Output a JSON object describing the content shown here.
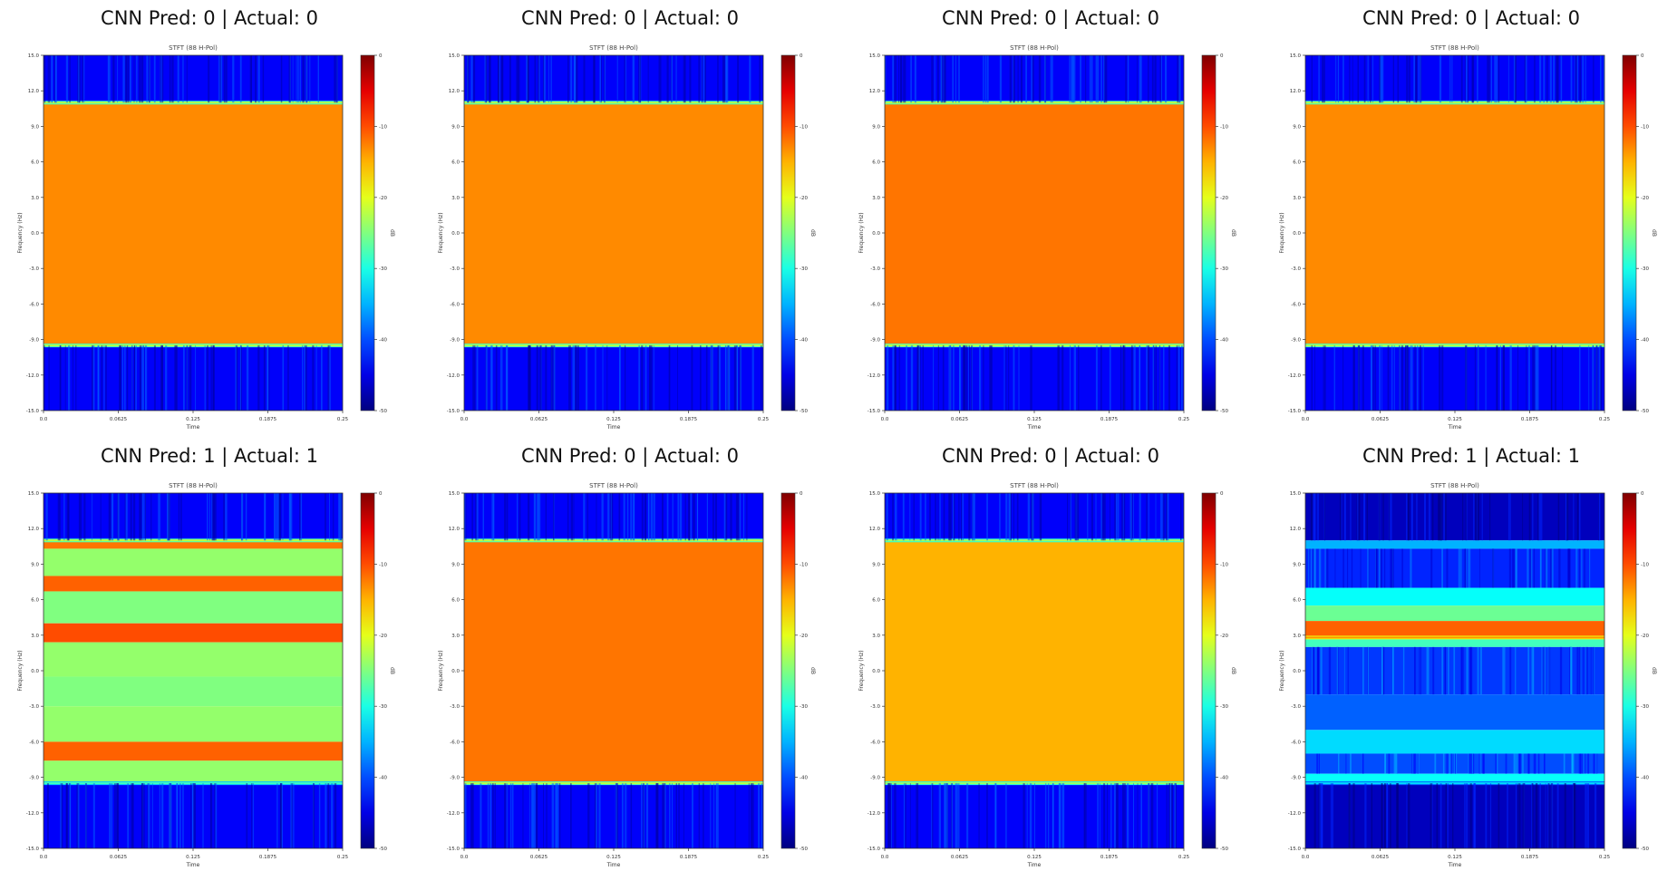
{
  "chart_data": [
    {
      "type": "heatmap",
      "title": "CNN Pred: 0 | Actual: 0",
      "subtitle": "STFT (88 H-Pol)",
      "xlabel": "Time",
      "ylabel": "Frequency (Hz)",
      "colorbar_label": "dB",
      "x_ticks": [
        "0.0",
        "0.0625",
        "0.125",
        "0.1875",
        "0.25"
      ],
      "y_ticks": [
        "15.0",
        "12.0",
        "9.0",
        "6.0",
        "3.0",
        "0.0",
        "-3.0",
        "-6.0",
        "-9.0",
        "-12.0",
        "-15.0"
      ],
      "colorbar_ticks": [
        "0",
        "-10",
        "-20",
        "-30",
        "-40",
        "-50"
      ],
      "colormap": "jet",
      "bands": [
        {
          "from": 11,
          "to": 15,
          "level": -44
        },
        {
          "from": -9.5,
          "to": 11,
          "level": -13
        },
        {
          "from": -15,
          "to": -9.5,
          "level": -44
        }
      ]
    },
    {
      "type": "heatmap",
      "title": "CNN Pred: 0 | Actual: 0",
      "subtitle": "STFT (88 H-Pol)",
      "xlabel": "Time",
      "ylabel": "Frequency (Hz)",
      "colorbar_label": "dB",
      "x_ticks": [
        "0.0",
        "0.0625",
        "0.125",
        "0.1875",
        "0.25"
      ],
      "y_ticks": [
        "15.0",
        "12.0",
        "9.0",
        "6.0",
        "3.0",
        "0.0",
        "-3.0",
        "-6.0",
        "-9.0",
        "-12.0",
        "-15.0"
      ],
      "colorbar_ticks": [
        "0",
        "-10",
        "-20",
        "-30",
        "-40",
        "-50"
      ],
      "colormap": "jet",
      "bands": [
        {
          "from": 11,
          "to": 15,
          "level": -44
        },
        {
          "from": -9.5,
          "to": 11,
          "level": -13
        },
        {
          "from": -15,
          "to": -9.5,
          "level": -44
        }
      ]
    },
    {
      "type": "heatmap",
      "title": "CNN Pred: 0 | Actual: 0",
      "subtitle": "STFT (88 H-Pol)",
      "xlabel": "Time",
      "ylabel": "Frequency (Hz)",
      "colorbar_label": "dB",
      "x_ticks": [
        "0.0",
        "0.0625",
        "0.125",
        "0.1875",
        "0.25"
      ],
      "y_ticks": [
        "15.0",
        "12.0",
        "9.0",
        "6.0",
        "3.0",
        "0.0",
        "-3.0",
        "-6.0",
        "-9.0",
        "-12.0",
        "-15.0"
      ],
      "colorbar_ticks": [
        "0",
        "-10",
        "-20",
        "-30",
        "-40",
        "-50"
      ],
      "colormap": "jet",
      "bands": [
        {
          "from": 11,
          "to": 15,
          "level": -44
        },
        {
          "from": -9.5,
          "to": 11,
          "level": -12
        },
        {
          "from": -15,
          "to": -9.5,
          "level": -44
        }
      ]
    },
    {
      "type": "heatmap",
      "title": "CNN Pred: 0 | Actual: 0",
      "subtitle": "STFT (88 H-Pol)",
      "xlabel": "Time",
      "ylabel": "Frequency (Hz)",
      "colorbar_label": "dB",
      "x_ticks": [
        "0.0",
        "0.0625",
        "0.125",
        "0.1875",
        "0.25"
      ],
      "y_ticks": [
        "15.0",
        "12.0",
        "9.0",
        "6.0",
        "3.0",
        "0.0",
        "-3.0",
        "-6.0",
        "-9.0",
        "-12.0",
        "-15.0"
      ],
      "colorbar_ticks": [
        "0",
        "-10",
        "-20",
        "-30",
        "-40",
        "-50"
      ],
      "colormap": "jet",
      "bands": [
        {
          "from": 11,
          "to": 15,
          "level": -44
        },
        {
          "from": -9.5,
          "to": 11,
          "level": -13
        },
        {
          "from": -15,
          "to": -9.5,
          "level": -44
        }
      ]
    },
    {
      "type": "heatmap",
      "title": "CNN Pred: 1 | Actual: 1",
      "subtitle": "STFT (88 H-Pol)",
      "xlabel": "Time",
      "ylabel": "Frequency (Hz)",
      "colorbar_label": "dB",
      "x_ticks": [
        "0.0",
        "0.0625",
        "0.125",
        "0.1875",
        "0.25"
      ],
      "y_ticks": [
        "15.0",
        "12.0",
        "9.0",
        "6.0",
        "3.0",
        "0.0",
        "-3.0",
        "-6.0",
        "-9.0",
        "-12.0",
        "-15.0"
      ],
      "colorbar_ticks": [
        "0",
        "-10",
        "-20",
        "-30",
        "-40",
        "-50"
      ],
      "colormap": "jet",
      "bands": [
        {
          "from": 11,
          "to": 15,
          "level": -44
        },
        {
          "from": 10.3,
          "to": 11,
          "level": -12
        },
        {
          "from": 8,
          "to": 10.3,
          "level": -24
        },
        {
          "from": 6.7,
          "to": 8,
          "level": -11
        },
        {
          "from": 4,
          "to": 6.7,
          "level": -25
        },
        {
          "from": 2.4,
          "to": 4,
          "level": -10
        },
        {
          "from": -0.5,
          "to": 2.4,
          "level": -24
        },
        {
          "from": -3,
          "to": -0.5,
          "level": -25
        },
        {
          "from": -6,
          "to": -3,
          "level": -24
        },
        {
          "from": -7.6,
          "to": -6,
          "level": -11
        },
        {
          "from": -9.5,
          "to": -7.6,
          "level": -24
        },
        {
          "from": -15,
          "to": -9.5,
          "level": -44
        }
      ]
    },
    {
      "type": "heatmap",
      "title": "CNN Pred: 0 | Actual: 0",
      "subtitle": "STFT (88 H-Pol)",
      "xlabel": "Time",
      "ylabel": "Frequency (Hz)",
      "colorbar_label": "dB",
      "x_ticks": [
        "0.0",
        "0.0625",
        "0.125",
        "0.1875",
        "0.25"
      ],
      "y_ticks": [
        "15.0",
        "12.0",
        "9.0",
        "6.0",
        "3.0",
        "0.0",
        "-3.0",
        "-6.0",
        "-9.0",
        "-12.0",
        "-15.0"
      ],
      "colorbar_ticks": [
        "0",
        "-10",
        "-20",
        "-30",
        "-40",
        "-50"
      ],
      "colormap": "jet",
      "bands": [
        {
          "from": 11,
          "to": 15,
          "level": -44
        },
        {
          "from": -9.5,
          "to": 11,
          "level": -12
        },
        {
          "from": -15,
          "to": -9.5,
          "level": -44
        }
      ]
    },
    {
      "type": "heatmap",
      "title": "CNN Pred: 0 | Actual: 0",
      "subtitle": "STFT (88 H-Pol)",
      "xlabel": "Time",
      "ylabel": "Frequency (Hz)",
      "colorbar_label": "dB",
      "x_ticks": [
        "0.0",
        "0.0625",
        "0.125",
        "0.1875",
        "0.25"
      ],
      "y_ticks": [
        "15.0",
        "12.0",
        "9.0",
        "6.0",
        "3.0",
        "0.0",
        "-3.0",
        "-6.0",
        "-9.0",
        "-12.0",
        "-15.0"
      ],
      "colorbar_ticks": [
        "0",
        "-10",
        "-20",
        "-30",
        "-40",
        "-50"
      ],
      "colormap": "jet",
      "bands": [
        {
          "from": 11,
          "to": 15,
          "level": -44
        },
        {
          "from": -9.5,
          "to": 11,
          "level": -15
        },
        {
          "from": -15,
          "to": -9.5,
          "level": -44
        }
      ]
    },
    {
      "type": "heatmap",
      "title": "CNN Pred: 1 | Actual: 1",
      "subtitle": "STFT (88 H-Pol)",
      "xlabel": "Time",
      "ylabel": "Frequency (Hz)",
      "colorbar_label": "dB",
      "x_ticks": [
        "0.0",
        "0.0625",
        "0.125",
        "0.1875",
        "0.25"
      ],
      "y_ticks": [
        "15.0",
        "12.0",
        "9.0",
        "6.0",
        "3.0",
        "0.0",
        "-3.0",
        "-6.0",
        "-9.0",
        "-12.0",
        "-15.0"
      ],
      "colorbar_ticks": [
        "0",
        "-10",
        "-20",
        "-30",
        "-40",
        "-50"
      ],
      "colormap": "jet",
      "bands": [
        {
          "from": 11,
          "to": 15,
          "level": -47
        },
        {
          "from": 10.3,
          "to": 11,
          "level": -35
        },
        {
          "from": 7,
          "to": 10.3,
          "level": -42
        },
        {
          "from": 5.5,
          "to": 7,
          "level": -31
        },
        {
          "from": 4.2,
          "to": 5.5,
          "level": -26
        },
        {
          "from": 2.8,
          "to": 4.2,
          "level": -11
        },
        {
          "from": 2,
          "to": 2.8,
          "level": -28
        },
        {
          "from": -2,
          "to": 2,
          "level": -41
        },
        {
          "from": -5,
          "to": -2,
          "level": -39
        },
        {
          "from": -7,
          "to": -5,
          "level": -33
        },
        {
          "from": -8.7,
          "to": -7,
          "level": -40
        },
        {
          "from": -9.5,
          "to": -8.7,
          "level": -31
        },
        {
          "from": -15,
          "to": -9.5,
          "level": -47
        }
      ]
    }
  ]
}
